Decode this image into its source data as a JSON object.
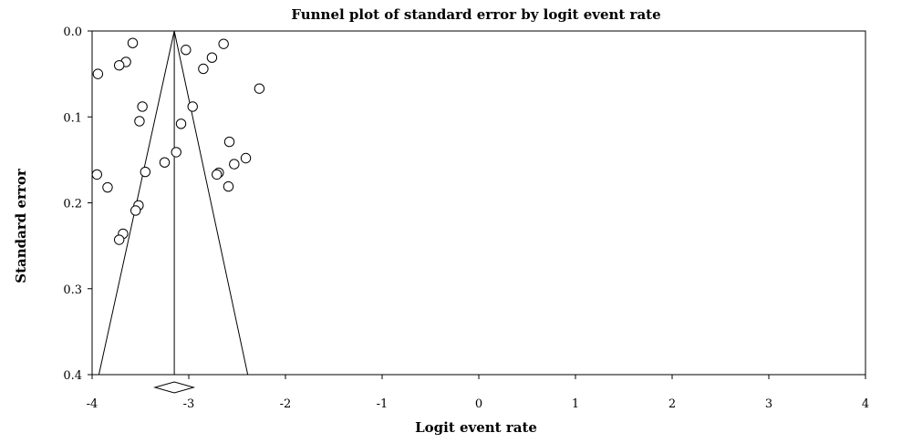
{
  "chart_data": {
    "type": "scatter",
    "title": "Funnel plot of standard error by logit event rate",
    "xlabel": "Logit event rate",
    "ylabel": "Standard error",
    "xlim": [
      -4,
      4
    ],
    "ylim": [
      0.0,
      0.4
    ],
    "y_inverted": true,
    "x_ticks": [
      "-4",
      "-3",
      "-2",
      "-1",
      "0",
      "1",
      "2",
      "3",
      "4"
    ],
    "y_ticks": [
      "0.0",
      "0.1",
      "0.2",
      "0.3",
      "0.4"
    ],
    "pooled_estimate": -3.15,
    "funnel": {
      "apex": [
        -3.15,
        0.0
      ],
      "bottom_left": [
        -3.93,
        0.4
      ],
      "bottom_right": [
        -2.39,
        0.4
      ]
    },
    "summary_diamond": {
      "center": -3.15,
      "lower": -3.35,
      "upper": -2.95
    },
    "points": [
      {
        "x": -3.58,
        "y": 0.014
      },
      {
        "x": -3.03,
        "y": 0.022
      },
      {
        "x": -2.64,
        "y": 0.015
      },
      {
        "x": -2.76,
        "y": 0.031
      },
      {
        "x": -3.65,
        "y": 0.036
      },
      {
        "x": -3.72,
        "y": 0.04
      },
      {
        "x": -2.85,
        "y": 0.044
      },
      {
        "x": -3.94,
        "y": 0.05
      },
      {
        "x": -2.27,
        "y": 0.067
      },
      {
        "x": -3.48,
        "y": 0.088
      },
      {
        "x": -2.96,
        "y": 0.088
      },
      {
        "x": -3.51,
        "y": 0.105
      },
      {
        "x": -3.08,
        "y": 0.108
      },
      {
        "x": -2.58,
        "y": 0.129
      },
      {
        "x": -3.13,
        "y": 0.141
      },
      {
        "x": -2.41,
        "y": 0.148
      },
      {
        "x": -3.25,
        "y": 0.153
      },
      {
        "x": -2.53,
        "y": 0.155
      },
      {
        "x": -3.45,
        "y": 0.164
      },
      {
        "x": -2.69,
        "y": 0.165
      },
      {
        "x": -2.71,
        "y": 0.167
      },
      {
        "x": -3.95,
        "y": 0.167
      },
      {
        "x": -2.59,
        "y": 0.181
      },
      {
        "x": -3.84,
        "y": 0.182
      },
      {
        "x": -3.52,
        "y": 0.203
      },
      {
        "x": -3.55,
        "y": 0.209
      },
      {
        "x": -3.68,
        "y": 0.236
      },
      {
        "x": -3.72,
        "y": 0.243
      }
    ]
  }
}
